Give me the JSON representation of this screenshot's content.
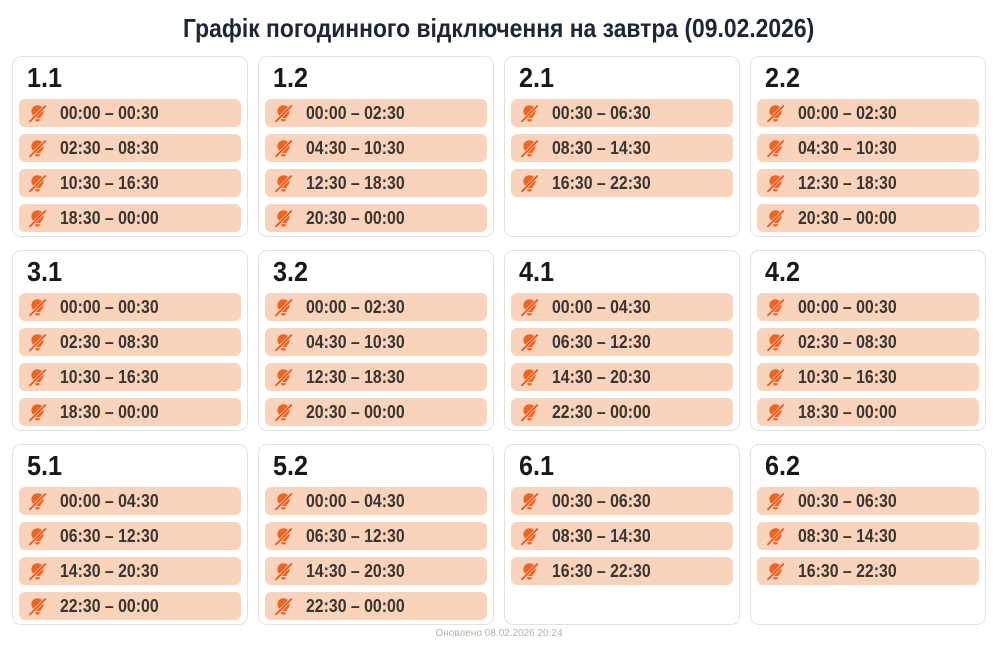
{
  "page": {
    "title": "Графік погодинного відключення на завтра (09.02.2026)",
    "updated": "Оновлено 08.02.2026 20:24"
  },
  "colors": {
    "accent_orange": "#f4631d",
    "slash_orange": "#e8531a",
    "row_background": "#fad3bc",
    "card_border": "#e2e2e2",
    "title_text": "#1c2733",
    "time_text": "#3a352f",
    "footer_text": "#b9afa5"
  },
  "icons": {
    "row_icon": "light-bulb-off-icon"
  },
  "groups": [
    {
      "label": "1.1",
      "intervals": [
        "00:00 – 00:30",
        "02:30 – 08:30",
        "10:30 – 16:30",
        "18:30 – 00:00"
      ]
    },
    {
      "label": "1.2",
      "intervals": [
        "00:00 – 02:30",
        "04:30 – 10:30",
        "12:30 – 18:30",
        "20:30 – 00:00"
      ]
    },
    {
      "label": "2.1",
      "intervals": [
        "00:30 – 06:30",
        "08:30 – 14:30",
        "16:30 – 22:30"
      ]
    },
    {
      "label": "2.2",
      "intervals": [
        "00:00 – 02:30",
        "04:30 – 10:30",
        "12:30 – 18:30",
        "20:30 – 00:00"
      ]
    },
    {
      "label": "3.1",
      "intervals": [
        "00:00 – 00:30",
        "02:30 – 08:30",
        "10:30 – 16:30",
        "18:30 – 00:00"
      ]
    },
    {
      "label": "3.2",
      "intervals": [
        "00:00 – 02:30",
        "04:30 – 10:30",
        "12:30 – 18:30",
        "20:30 – 00:00"
      ]
    },
    {
      "label": "4.1",
      "intervals": [
        "00:00 – 04:30",
        "06:30 – 12:30",
        "14:30 – 20:30",
        "22:30 – 00:00"
      ]
    },
    {
      "label": "4.2",
      "intervals": [
        "00:00 – 00:30",
        "02:30 – 08:30",
        "10:30 – 16:30",
        "18:30 – 00:00"
      ]
    },
    {
      "label": "5.1",
      "intervals": [
        "00:00 – 04:30",
        "06:30 – 12:30",
        "14:30 – 20:30",
        "22:30 – 00:00"
      ]
    },
    {
      "label": "5.2",
      "intervals": [
        "00:00 – 04:30",
        "06:30 – 12:30",
        "14:30 – 20:30",
        "22:30 – 00:00"
      ]
    },
    {
      "label": "6.1",
      "intervals": [
        "00:30 – 06:30",
        "08:30 – 14:30",
        "16:30 – 22:30"
      ]
    },
    {
      "label": "6.2",
      "intervals": [
        "00:30 – 06:30",
        "08:30 – 14:30",
        "16:30 – 22:30"
      ]
    }
  ]
}
